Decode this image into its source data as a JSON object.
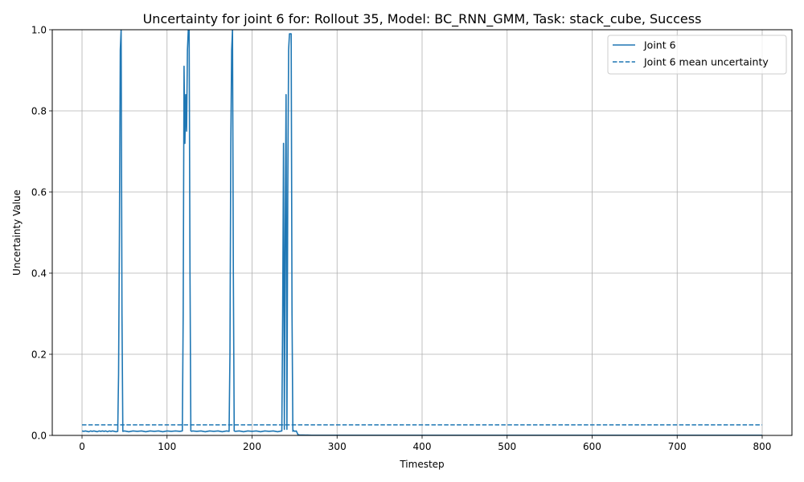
{
  "chart_data": {
    "type": "line",
    "title": "Uncertainty for joint 6 for: Rollout 35, Model: BC_RNN_GMM, Task: stack_cube, Success",
    "xlabel": "Timestep",
    "ylabel": "Uncertainty Value",
    "xlim": [
      -35,
      835
    ],
    "ylim": [
      0,
      1.0
    ],
    "xticks": [
      0,
      100,
      200,
      300,
      400,
      500,
      600,
      700,
      800
    ],
    "yticks": [
      0.0,
      0.2,
      0.4,
      0.6,
      0.8,
      1.0
    ],
    "xtick_labels": [
      "0",
      "100",
      "200",
      "300",
      "400",
      "500",
      "600",
      "700",
      "800"
    ],
    "ytick_labels": [
      "0.0",
      "0.2",
      "0.4",
      "0.6",
      "0.8",
      "1.0"
    ],
    "grid": true,
    "legend_position": "top-right",
    "colors": {
      "series": "#1f77b4",
      "grid": "#b0b0b0",
      "axis": "#000000"
    },
    "series": [
      {
        "name": "Joint 6",
        "style": "solid",
        "x": [
          0,
          2,
          4,
          6,
          8,
          10,
          12,
          14,
          16,
          18,
          20,
          22,
          24,
          26,
          28,
          30,
          32,
          34,
          36,
          38,
          40,
          42,
          43,
          44,
          45,
          46,
          47,
          48,
          50,
          55,
          60,
          65,
          70,
          75,
          80,
          85,
          90,
          95,
          100,
          105,
          110,
          115,
          118,
          119,
          120,
          121,
          122,
          123,
          124,
          125,
          126,
          127,
          128,
          129,
          130,
          135,
          140,
          145,
          150,
          155,
          160,
          165,
          170,
          173,
          174,
          175,
          176,
          177,
          178,
          179,
          180,
          185,
          190,
          195,
          200,
          205,
          210,
          215,
          220,
          225,
          230,
          235,
          236,
          237,
          238,
          239,
          240,
          241,
          242,
          243,
          244,
          245,
          246,
          247,
          248,
          249,
          250,
          252,
          254,
          256,
          260,
          270,
          300,
          400,
          500,
          600,
          700,
          800
        ],
        "y": [
          0.011,
          0.01,
          0.011,
          0.01,
          0.009,
          0.011,
          0.01,
          0.011,
          0.01,
          0.009,
          0.011,
          0.01,
          0.011,
          0.01,
          0.011,
          0.009,
          0.011,
          0.01,
          0.011,
          0.01,
          0.009,
          0.01,
          0.15,
          0.5,
          0.95,
          1.0,
          0.3,
          0.01,
          0.011,
          0.009,
          0.011,
          0.01,
          0.011,
          0.009,
          0.011,
          0.01,
          0.011,
          0.009,
          0.011,
          0.01,
          0.011,
          0.01,
          0.011,
          0.3,
          0.91,
          0.72,
          0.84,
          0.75,
          0.95,
          1.0,
          1.0,
          0.4,
          0.011,
          0.01,
          0.011,
          0.01,
          0.011,
          0.009,
          0.011,
          0.01,
          0.011,
          0.009,
          0.011,
          0.01,
          0.2,
          0.72,
          0.95,
          1.0,
          0.4,
          0.011,
          0.01,
          0.011,
          0.009,
          0.011,
          0.01,
          0.011,
          0.009,
          0.011,
          0.01,
          0.011,
          0.009,
          0.011,
          0.3,
          0.72,
          0.015,
          0.5,
          0.84,
          0.015,
          0.6,
          0.95,
          0.99,
          0.99,
          0.99,
          0.3,
          0.01,
          0.012,
          0.01,
          0.011,
          0.002,
          0.001,
          0.001,
          0.0005,
          0.0005,
          0.0005,
          0.0005,
          0.0005,
          0.0005,
          0.0005
        ]
      },
      {
        "name": "Joint 6 mean uncertainty",
        "style": "dashed",
        "x": [
          0,
          800
        ],
        "y": [
          0.026,
          0.026
        ]
      }
    ]
  }
}
